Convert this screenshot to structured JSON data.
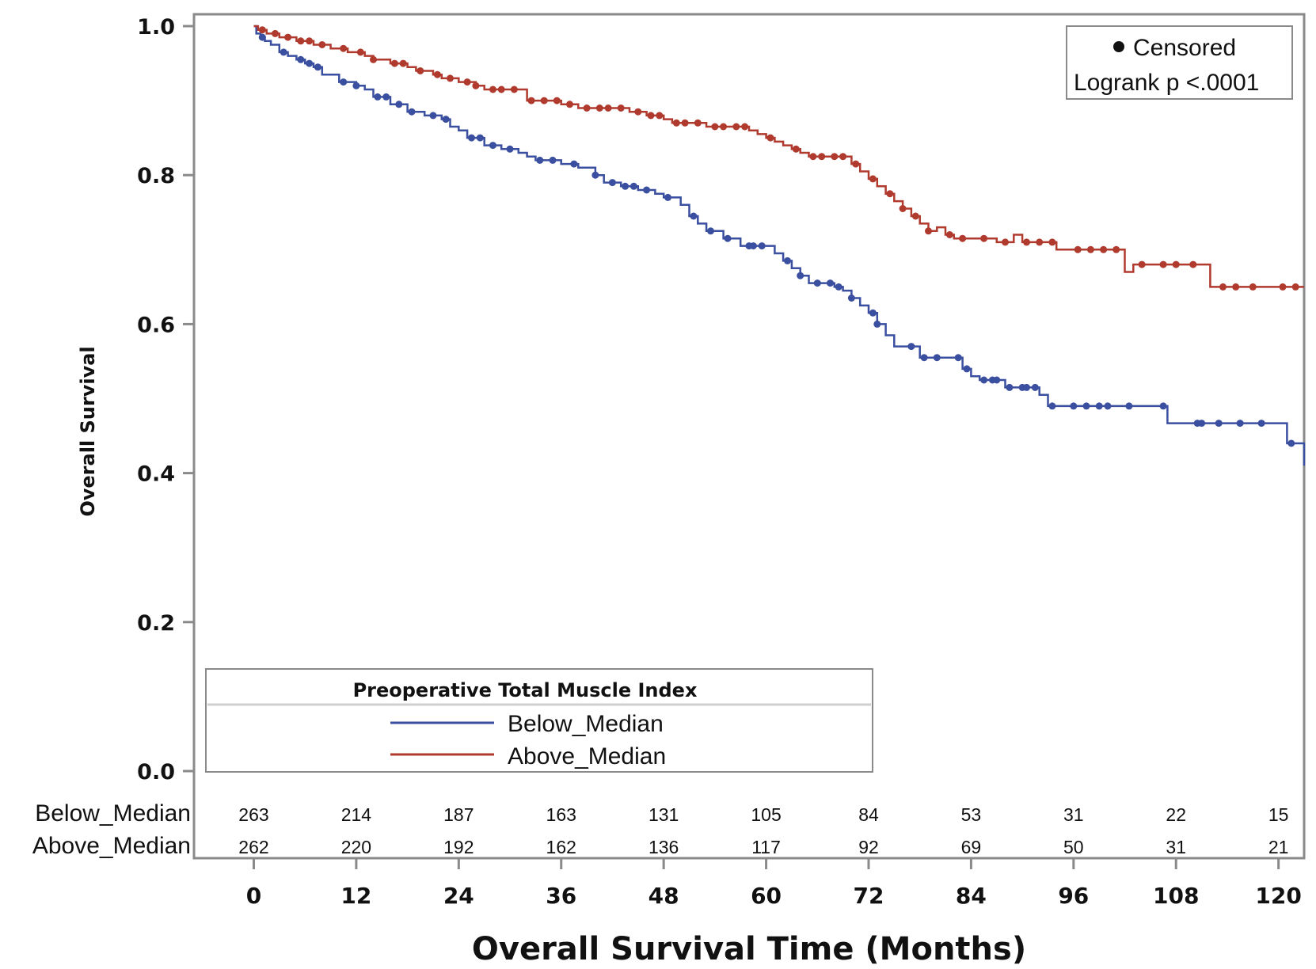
{
  "chart_data": {
    "type": "line",
    "subtype": "kaplan-meier step",
    "title": "",
    "xlabel": "Overall Survival Time (Months)",
    "ylabel": "Overall Survival",
    "xlim": [
      -7,
      123
    ],
    "ylim": [
      0,
      1.0
    ],
    "x_ticks": [
      "0",
      "12",
      "24",
      "36",
      "48",
      "60",
      "72",
      "84",
      "96",
      "108",
      "120"
    ],
    "y_ticks": [
      "0.0",
      "0.2",
      "0.4",
      "0.6",
      "0.8",
      "1.0"
    ],
    "censored_label": "Censored",
    "annotation": "Logrank p <.0001",
    "legend": {
      "title": "Preoperative Total Muscle Index",
      "position": "bottom-left",
      "entries": [
        "Below_Median",
        "Above_Median"
      ]
    },
    "series": [
      {
        "name": "Below_Median",
        "color": "#3b4fa0",
        "x": [
          0,
          0.3,
          0.8,
          1.3,
          2,
          3,
          4,
          5,
          6,
          7,
          8,
          10,
          12,
          13,
          14,
          16,
          18,
          20,
          22,
          23,
          24,
          25,
          27,
          29,
          31,
          32,
          33,
          36,
          38,
          40,
          41,
          43,
          45,
          47,
          48,
          50,
          51,
          52,
          53,
          55,
          57,
          61,
          62,
          63,
          64,
          65,
          68,
          69,
          70,
          71,
          72,
          73,
          74,
          75,
          78,
          83,
          84,
          85,
          88,
          92,
          93,
          94,
          95,
          107,
          121,
          123
        ],
        "y": [
          1.0,
          0.99,
          0.985,
          0.98,
          0.975,
          0.965,
          0.96,
          0.955,
          0.95,
          0.945,
          0.935,
          0.925,
          0.92,
          0.915,
          0.905,
          0.895,
          0.885,
          0.88,
          0.875,
          0.865,
          0.86,
          0.85,
          0.84,
          0.835,
          0.83,
          0.825,
          0.82,
          0.815,
          0.81,
          0.8,
          0.79,
          0.785,
          0.78,
          0.775,
          0.77,
          0.76,
          0.745,
          0.735,
          0.725,
          0.715,
          0.705,
          0.695,
          0.685,
          0.675,
          0.665,
          0.655,
          0.65,
          0.645,
          0.635,
          0.625,
          0.615,
          0.6,
          0.585,
          0.57,
          0.555,
          0.54,
          0.53,
          0.525,
          0.515,
          0.505,
          0.49,
          0.49,
          0.49,
          0.467,
          0.44,
          0.41
        ],
        "censored_x": [
          1,
          3.5,
          5.5,
          6.5,
          7.5,
          10.5,
          12,
          14.5,
          15.5,
          17,
          18.5,
          21,
          22.5,
          25.5,
          26.5,
          28,
          30,
          33.5,
          35,
          37.5,
          40,
          42,
          43.5,
          44.5,
          46,
          48.5,
          51.5,
          53.5,
          55.5,
          58,
          58.5,
          59.5,
          62.5,
          64,
          66,
          67.5,
          68.5,
          70,
          72.5,
          73,
          77,
          78.5,
          80,
          82.5,
          83.5,
          85.5,
          86.5,
          87,
          88.5,
          90,
          90.5,
          91.5,
          93.5,
          96,
          97.5,
          99,
          100,
          102.5,
          106.5,
          110.5,
          111,
          113,
          115.5,
          118,
          121.5
        ]
      },
      {
        "name": "Above_Median",
        "color": "#b03a2e",
        "x": [
          0,
          0.5,
          1.5,
          3,
          5,
          7,
          9,
          11,
          13,
          14,
          16,
          18,
          19,
          21,
          22,
          24,
          26,
          27,
          32,
          33,
          36,
          38,
          44,
          46,
          48,
          49,
          53,
          58,
          59,
          60,
          61,
          62,
          63,
          64,
          65,
          70,
          71,
          72,
          73,
          74,
          75,
          76,
          77,
          78,
          79,
          80,
          81,
          82,
          87,
          89,
          90,
          94,
          95,
          102,
          103,
          111,
          112,
          113,
          114,
          115,
          123
        ],
        "y": [
          1.0,
          0.995,
          0.99,
          0.985,
          0.98,
          0.975,
          0.97,
          0.965,
          0.96,
          0.955,
          0.95,
          0.945,
          0.94,
          0.935,
          0.93,
          0.925,
          0.92,
          0.915,
          0.9,
          0.9,
          0.895,
          0.89,
          0.885,
          0.88,
          0.875,
          0.87,
          0.865,
          0.86,
          0.855,
          0.85,
          0.845,
          0.84,
          0.835,
          0.83,
          0.825,
          0.815,
          0.805,
          0.795,
          0.785,
          0.775,
          0.765,
          0.755,
          0.745,
          0.735,
          0.725,
          0.73,
          0.72,
          0.715,
          0.71,
          0.72,
          0.71,
          0.7,
          0.7,
          0.67,
          0.68,
          0.68,
          0.65,
          0.65,
          0.65,
          0.65,
          0.65
        ],
        "censored_x": [
          1,
          2.5,
          4,
          5.5,
          6.5,
          8,
          10.5,
          12.5,
          14,
          16.5,
          17.5,
          19.5,
          21.5,
          23,
          25,
          26,
          28,
          29,
          30.5,
          32.5,
          34,
          35.5,
          37,
          39,
          40.5,
          41.5,
          43,
          45,
          46.5,
          47.5,
          49.5,
          50.5,
          52,
          54,
          55,
          56.5,
          57.5,
          60.5,
          63.5,
          65.5,
          66.5,
          68,
          69,
          70.5,
          72.5,
          74.5,
          76,
          77.5,
          79,
          81.5,
          83,
          85.5,
          88,
          90.5,
          92,
          93.5,
          96.5,
          98,
          99.5,
          101,
          104,
          106.5,
          108,
          110,
          113.5,
          115,
          117,
          120.5,
          122
        ]
      }
    ],
    "risk_table": {
      "times": [
        "0",
        "12",
        "24",
        "36",
        "48",
        "60",
        "72",
        "84",
        "96",
        "108",
        "120"
      ],
      "rows": [
        {
          "label": "Below_Median",
          "counts": [
            "263",
            "214",
            "187",
            "163",
            "131",
            "105",
            "84",
            "53",
            "31",
            "22",
            "15"
          ]
        },
        {
          "label": "Above_Median",
          "counts": [
            "262",
            "220",
            "192",
            "162",
            "136",
            "117",
            "92",
            "69",
            "50",
            "31",
            "21"
          ]
        }
      ]
    }
  }
}
